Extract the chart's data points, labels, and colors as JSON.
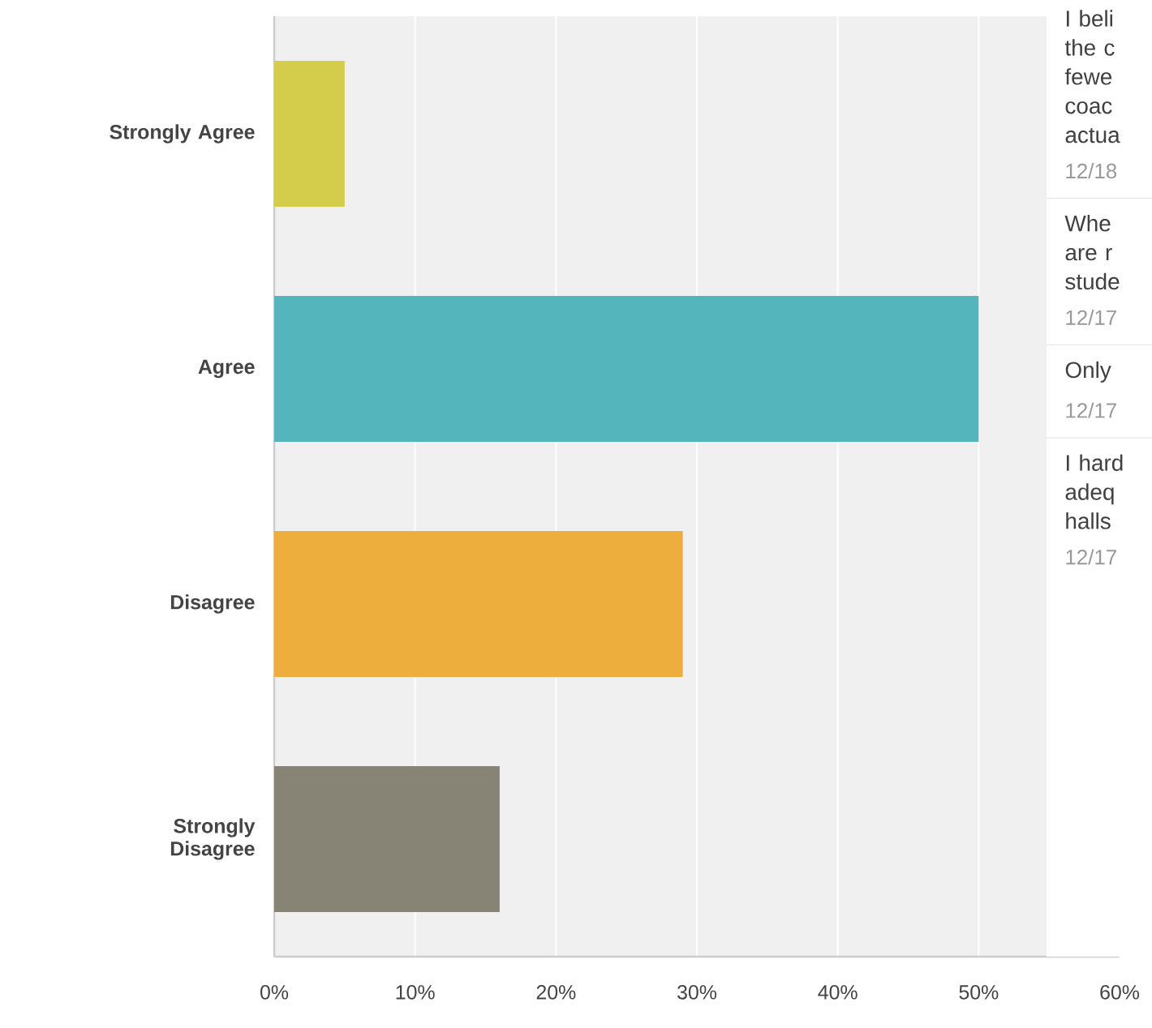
{
  "chart_data": {
    "type": "bar",
    "orientation": "horizontal",
    "categories": [
      "Strongly Agree",
      "Agree",
      "Disagree",
      "Strongly Disagree"
    ],
    "values": [
      5,
      50,
      29,
      16
    ],
    "colors": [
      "#d3cd4b",
      "#54b5bd",
      "#eeae3e",
      "#878475"
    ],
    "xlim": [
      0,
      60
    ],
    "xticks": [
      {
        "value": 0,
        "label": "0%"
      },
      {
        "value": 10,
        "label": "10%"
      },
      {
        "value": 20,
        "label": "20%"
      },
      {
        "value": 30,
        "label": "30%"
      },
      {
        "value": 40,
        "label": "40%"
      },
      {
        "value": 50,
        "label": "50%"
      },
      {
        "value": 60,
        "label": "60%"
      }
    ],
    "grid": "x",
    "annotations": [
      "I beli the c fewe coac actua",
      "12/18",
      "Whe are r stude",
      "12/17",
      "Only",
      "12/17",
      "I hard adeq halls",
      "12/17"
    ]
  }
}
